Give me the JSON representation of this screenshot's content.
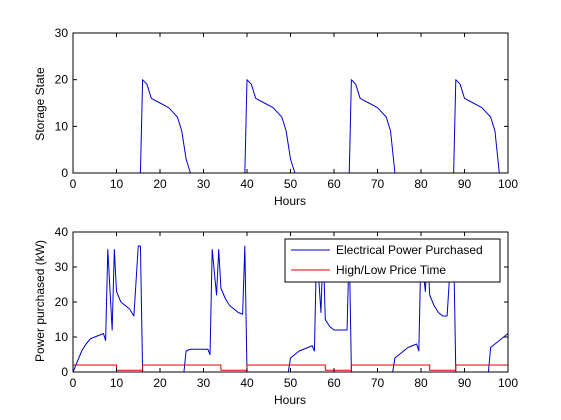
{
  "chart_data": [
    {
      "type": "line",
      "xlabel": "Hours",
      "ylabel": "Storage State",
      "xlim": [
        0,
        100
      ],
      "ylim": [
        0,
        30
      ],
      "xticks": [
        "0",
        "10",
        "20",
        "30",
        "40",
        "50",
        "60",
        "70",
        "80",
        "90",
        "100"
      ],
      "yticks": [
        "0",
        "10",
        "20",
        "30"
      ],
      "grid": false,
      "series": [
        {
          "color": "#0000cc",
          "x": [
            0,
            15.5,
            16,
            17,
            18,
            19,
            20,
            21,
            22,
            23,
            24,
            25,
            26,
            27,
            39.5,
            40,
            41,
            42,
            43,
            44,
            45,
            46,
            47,
            48,
            49,
            50,
            51,
            63.5,
            64,
            65,
            66,
            67,
            68,
            69,
            70,
            71,
            72,
            73,
            74,
            87.5,
            88,
            89,
            90,
            91,
            92,
            93,
            94,
            95,
            96,
            97,
            98,
            100
          ],
          "y": [
            0,
            0,
            20,
            19,
            16,
            15.5,
            15,
            14.5,
            14,
            13,
            12,
            9,
            3,
            0,
            0,
            20,
            19,
            16,
            15.5,
            15,
            14.5,
            14,
            13,
            12,
            9,
            3,
            0,
            0,
            20,
            19,
            16,
            15.5,
            15,
            14.5,
            14,
            13,
            12,
            9,
            0,
            0,
            20,
            19,
            16,
            15.5,
            15,
            14.5,
            14,
            13,
            12,
            9,
            0,
            0
          ]
        }
      ]
    },
    {
      "type": "line",
      "xlabel": "Hours",
      "ylabel": "Power purchased (kW)",
      "xlim": [
        0,
        100
      ],
      "ylim": [
        0,
        40
      ],
      "xticks": [
        "0",
        "10",
        "20",
        "30",
        "40",
        "50",
        "60",
        "70",
        "80",
        "90",
        "100"
      ],
      "yticks": [
        "0",
        "10",
        "20",
        "30",
        "40"
      ],
      "grid": false,
      "legend_position": "top-right",
      "series": [
        {
          "name": "Electrical Power Purchased",
          "color": "#0000cc",
          "x": [
            0,
            1,
            2,
            3,
            4,
            5,
            6,
            7,
            7.5,
            8,
            9,
            9.5,
            10,
            11,
            12,
            13,
            14,
            15,
            15.5,
            16,
            25.5,
            26,
            27,
            28,
            29,
            30,
            31,
            31.5,
            32,
            33,
            33.5,
            34,
            35,
            36,
            37,
            38,
            39,
            39.5,
            40,
            49.5,
            50,
            51,
            52,
            53,
            54,
            55,
            55.5,
            56,
            57,
            57.5,
            58,
            59,
            60,
            61,
            62,
            63,
            63.5,
            64,
            73.5,
            74,
            75,
            76,
            77,
            78,
            79,
            79.5,
            80,
            81,
            81.5,
            82,
            83,
            84,
            85,
            86,
            87,
            87.5,
            88,
            95.5,
            96,
            97,
            98,
            99,
            100
          ],
          "y": [
            0,
            3,
            6,
            8,
            9.5,
            10,
            10.5,
            11,
            9,
            35,
            12,
            35,
            23,
            20,
            19,
            18,
            16,
            36,
            36,
            0,
            0,
            6,
            6.5,
            6.5,
            6.5,
            6.5,
            6.5,
            5,
            35,
            22,
            35,
            24,
            21,
            19,
            18,
            17,
            16.5,
            36,
            0,
            0,
            4,
            5,
            6,
            6.5,
            7,
            7.5,
            6,
            36,
            17,
            36,
            15,
            13,
            12,
            12,
            12,
            12,
            36,
            0,
            0,
            4,
            5,
            6,
            7,
            7.5,
            8,
            6,
            35,
            23,
            35,
            22,
            19,
            17,
            16,
            16,
            36,
            36,
            0,
            0,
            7,
            8,
            9,
            10,
            11
          ]
        },
        {
          "name": "High/Low Price Time",
          "color": "#dd0000",
          "x": [
            0,
            10,
            10,
            16,
            16,
            34,
            34,
            40,
            40,
            58,
            58,
            64,
            64,
            82,
            82,
            88,
            88,
            100
          ],
          "y": [
            2,
            2,
            0.5,
            0.5,
            2,
            2,
            0.5,
            0.5,
            2,
            2,
            0.5,
            0.5,
            2,
            2,
            0.5,
            0.5,
            2,
            2
          ]
        }
      ]
    }
  ]
}
